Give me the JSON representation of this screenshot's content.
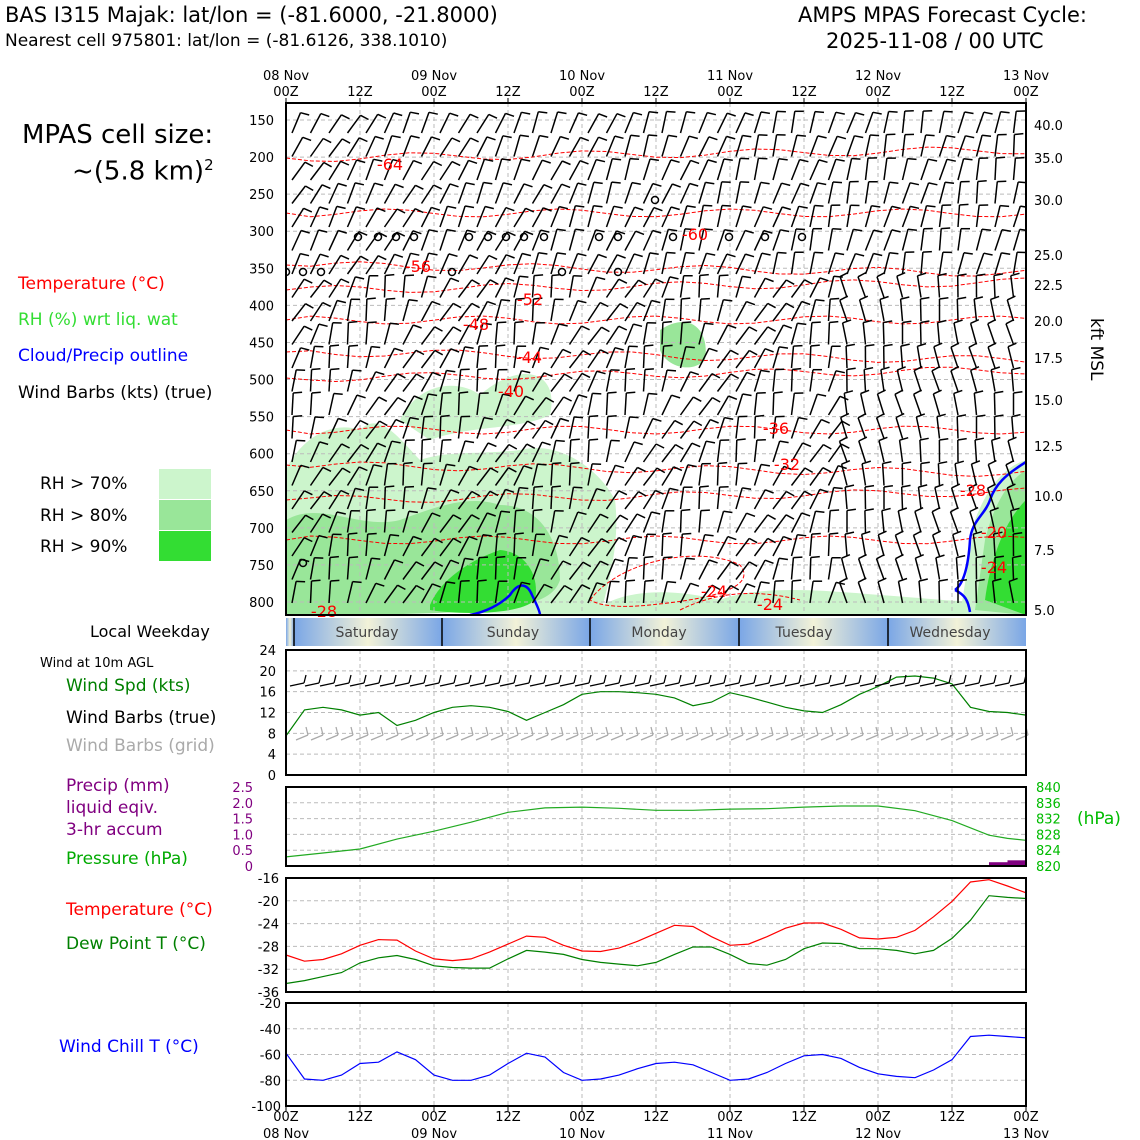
{
  "header": {
    "station": "BAS I315 Majak: lat/lon = (-81.6000, -21.8000)",
    "nearest_cell": "Nearest cell 975801: lat/lon = (-81.6126, 338.1010)",
    "forecast_title": "AMPS MPAS Forecast Cycle:",
    "forecast_cycle": "2025-11-08 / 00 UTC"
  },
  "cell_size": {
    "label": "MPAS cell size:",
    "value": "~(5.8 km)",
    "exp": "2"
  },
  "legend_upper": {
    "temperature": "Temperature (°C)",
    "rh": "RH (%) wrt liq. wat",
    "cloud": "Cloud/Precip outline",
    "barbs": "Wind Barbs (kts) (true)",
    "rh70": "RH > 70%",
    "rh80": "RH > 80%",
    "rh90": "RH > 90%"
  },
  "colors": {
    "red": "#ff0000",
    "green": "#008000",
    "light_green": "#33cc33",
    "blue": "#0000ff",
    "purple": "#800080",
    "gray": "#aaaaaa",
    "rh70": "#ccf5cc",
    "rh80": "#99e699",
    "rh90": "#33dd33"
  },
  "weekday": {
    "label": "Local Weekday",
    "days": [
      "Saturday",
      "Sunday",
      "Monday",
      "Tuesday",
      "Wednesday"
    ]
  },
  "legend_wind": {
    "title": "Wind at 10m AGL",
    "spd": "Wind Spd (kts)",
    "barbs_true": "Wind Barbs (true)",
    "barbs_grid": "Wind Barbs (grid)"
  },
  "legend_precip": {
    "line1": "Precip (mm)",
    "line2": "liquid eqiv.",
    "line3": "3-hr accum",
    "pressure": "Pressure (hPa)",
    "hpa_unit": "(hPa)"
  },
  "legend_temp": {
    "temp": "Temperature (°C)",
    "dew": "Dew Point T (°C)"
  },
  "legend_chill": {
    "label": "Wind Chill T (°C)"
  },
  "chart_data": [
    {
      "type": "line",
      "title": "Vertical cross-section: temperature contours, RH shading, wind barbs",
      "x_hours": [
        0,
        120
      ],
      "top_tick_labels": [
        "08 Nov\n00Z",
        "12Z",
        "09 Nov\n00Z",
        "12Z",
        "10 Nov\n00Z",
        "12Z",
        "11 Nov\n00Z",
        "12Z",
        "12 Nov\n00Z",
        "12Z",
        "13 Nov\n00Z"
      ],
      "y_left_labels": [
        "150",
        "200",
        "250",
        "300",
        "350",
        "400",
        "450",
        "500",
        "550",
        "600",
        "650",
        "700",
        "750",
        "800"
      ],
      "y_right_labels": [
        "40.0",
        "35.0",
        "30.0",
        "25.0",
        "22.5",
        "20.0",
        "17.5",
        "15.0",
        "12.5",
        "10.0",
        "7.5",
        "5.0"
      ],
      "y_right_title": "kft MSL",
      "contour_labels": [
        "-64",
        "-60",
        "-56",
        "-52",
        "-48",
        "-44",
        "-40",
        "-36",
        "-32",
        "-28",
        "-24",
        "-20",
        "-24",
        "-24",
        "-28"
      ]
    },
    {
      "type": "line",
      "title": "Wind Spd (kts)",
      "ylim": [
        0,
        24
      ],
      "yticks": [
        "0",
        "4",
        "8",
        "12",
        "16",
        "20",
        "24"
      ],
      "x": [
        0,
        3,
        6,
        9,
        12,
        15,
        18,
        21,
        24,
        27,
        30,
        33,
        36,
        39,
        42,
        45,
        48,
        51,
        54,
        57,
        60,
        63,
        66,
        69,
        72,
        75,
        78,
        81,
        84,
        87,
        90,
        93,
        96,
        99,
        102,
        105,
        108,
        111,
        114,
        117,
        120
      ],
      "values": [
        7.5,
        12.5,
        13,
        12.5,
        11.5,
        12,
        9.5,
        10.5,
        12,
        13,
        13.3,
        13,
        12.2,
        10.5,
        12,
        13.5,
        15.5,
        16,
        16,
        15.8,
        15.5,
        14.8,
        13.3,
        14,
        15.8,
        15,
        14,
        13,
        12.3,
        12,
        13.5,
        15.5,
        17,
        18.8,
        19,
        18.6,
        17.5,
        13,
        12.2,
        12,
        11.5
      ]
    },
    {
      "type": "line",
      "title": "Pressure (hPa) / Precip (mm)",
      "left_yticks": [
        "0",
        "0.5",
        "1.0",
        "1.5",
        "2.0",
        "2.5"
      ],
      "right_yticks": [
        "820",
        "824",
        "828",
        "832",
        "836",
        "840"
      ],
      "ylim": [
        820,
        840
      ],
      "x": [
        0,
        6,
        12,
        18,
        24,
        30,
        36,
        42,
        48,
        54,
        60,
        66,
        72,
        78,
        84,
        90,
        96,
        102,
        108,
        114,
        117,
        120
      ],
      "values": [
        822.3,
        823.3,
        824.3,
        826.8,
        828.8,
        831.1,
        833.6,
        834.7,
        834.9,
        834.6,
        834.1,
        834.1,
        834.4,
        834.5,
        834.9,
        835.2,
        835.2,
        834.0,
        831.5,
        827.8,
        827,
        826.5
      ],
      "precip_x": [
        114,
        117,
        120
      ],
      "precip_values": [
        0,
        0.12,
        0.18
      ]
    },
    {
      "type": "line",
      "title": "Temperature / Dew Point (°C)",
      "ylim": [
        -36,
        -16
      ],
      "yticks": [
        "-16",
        "-20",
        "-24",
        "-28",
        "-32",
        "-36"
      ],
      "x": [
        0,
        3,
        6,
        9,
        12,
        15,
        18,
        21,
        24,
        27,
        30,
        33,
        36,
        39,
        42,
        45,
        48,
        51,
        54,
        57,
        60,
        63,
        66,
        69,
        72,
        75,
        78,
        81,
        84,
        87,
        90,
        93,
        96,
        99,
        102,
        105,
        108,
        111,
        114,
        117,
        120
      ],
      "series": [
        {
          "name": "Temperature",
          "values": [
            -29.5,
            -30.6,
            -30.3,
            -29.3,
            -27.8,
            -26.8,
            -26.9,
            -28.8,
            -30.2,
            -30.5,
            -30.2,
            -29.0,
            -27.6,
            -26.2,
            -26.4,
            -27.8,
            -28.8,
            -28.9,
            -28.3,
            -27.1,
            -25.7,
            -24.3,
            -24.5,
            -26.3,
            -27.8,
            -27.6,
            -26.3,
            -24.8,
            -23.9,
            -23.9,
            -25.0,
            -26.5,
            -26.7,
            -26.4,
            -25.2,
            -22.8,
            -20.1,
            -16.7,
            -16.3,
            -17.4,
            -18.6
          ]
        },
        {
          "name": "Dew Point",
          "values": [
            -34.5,
            -34.0,
            -33.3,
            -32.6,
            -30.9,
            -30.0,
            -29.6,
            -30.3,
            -31.4,
            -31.7,
            -31.8,
            -31.8,
            -30.2,
            -28.7,
            -29.0,
            -29.4,
            -30.3,
            -30.8,
            -31.1,
            -31.4,
            -30.8,
            -29.4,
            -28.1,
            -28.1,
            -29.4,
            -31.0,
            -31.3,
            -30.3,
            -28.4,
            -27.4,
            -27.5,
            -28.4,
            -28.4,
            -28.7,
            -29.3,
            -28.7,
            -26.6,
            -23.4,
            -19.1,
            -19.4,
            -19.6
          ]
        }
      ]
    },
    {
      "type": "line",
      "title": "Wind Chill T (°C)",
      "ylim": [
        -100,
        -20
      ],
      "yticks": [
        "-20",
        "-40",
        "-60",
        "-80",
        "-100"
      ],
      "x": [
        0,
        3,
        6,
        9,
        12,
        15,
        18,
        21,
        24,
        27,
        30,
        33,
        36,
        39,
        42,
        45,
        48,
        51,
        54,
        57,
        60,
        63,
        66,
        69,
        72,
        75,
        78,
        81,
        84,
        87,
        90,
        93,
        96,
        99,
        102,
        105,
        108,
        111,
        114,
        117,
        120
      ],
      "values": [
        -59,
        -79,
        -80,
        -76,
        -67,
        -66,
        -58,
        -64,
        -76,
        -80,
        -80,
        -76,
        -67,
        -59,
        -62,
        -74,
        -80,
        -79,
        -76,
        -71,
        -67,
        -66,
        -68,
        -74,
        -80,
        -79,
        -74,
        -67,
        -61,
        -60,
        -63,
        -70,
        -75,
        -77,
        -78,
        -72,
        -64,
        -46,
        -45,
        -46,
        -47
      ]
    }
  ],
  "bottom_axis": {
    "ticks": [
      "00Z",
      "12Z",
      "00Z",
      "12Z",
      "00Z",
      "12Z",
      "00Z",
      "12Z",
      "00Z",
      "12Z",
      "00Z"
    ],
    "dates": [
      "08 Nov",
      "09 Nov",
      "10 Nov",
      "11 Nov",
      "12 Nov",
      "13 Nov"
    ]
  }
}
